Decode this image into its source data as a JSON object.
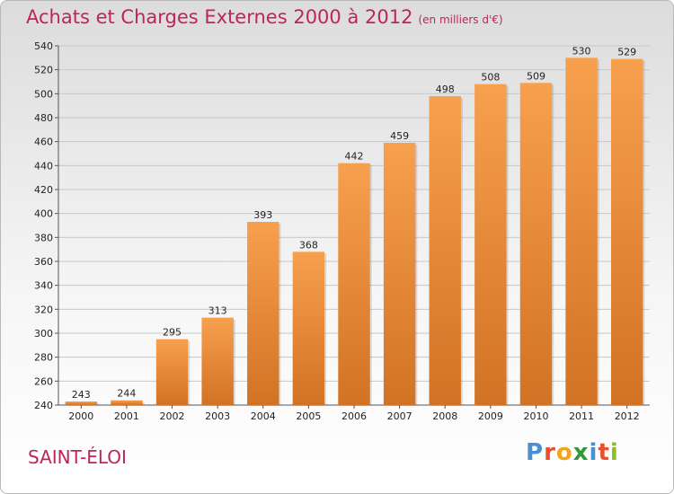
{
  "header": {
    "title": "Achats et Charges Externes 2000 à 2012",
    "subtitle": "(en milliers d'€)"
  },
  "footer": {
    "commune": "SAINT-ÉLOI",
    "brand_letters": [
      "P",
      "r",
      "o",
      "x",
      "i",
      "t",
      "i"
    ]
  },
  "colors": {
    "bar_top": "#f7a04e",
    "bar_bottom": "#d27224",
    "title": "#c0245a"
  },
  "chart_data": {
    "type": "bar",
    "title": "Achats et Charges Externes 2000 à 2012",
    "subtitle": "(en milliers d'€)",
    "xlabel": "",
    "ylabel": "",
    "categories": [
      "2000",
      "2001",
      "2002",
      "2003",
      "2004",
      "2005",
      "2006",
      "2007",
      "2008",
      "2009",
      "2010",
      "2011",
      "2012"
    ],
    "values": [
      243,
      244,
      295,
      313,
      393,
      368,
      442,
      459,
      498,
      508,
      509,
      530,
      529
    ],
    "ylim": [
      240,
      540
    ],
    "yticks": [
      240,
      260,
      280,
      300,
      320,
      340,
      360,
      380,
      400,
      420,
      440,
      460,
      480,
      500,
      520,
      540
    ],
    "grid": true,
    "legend": "none"
  }
}
